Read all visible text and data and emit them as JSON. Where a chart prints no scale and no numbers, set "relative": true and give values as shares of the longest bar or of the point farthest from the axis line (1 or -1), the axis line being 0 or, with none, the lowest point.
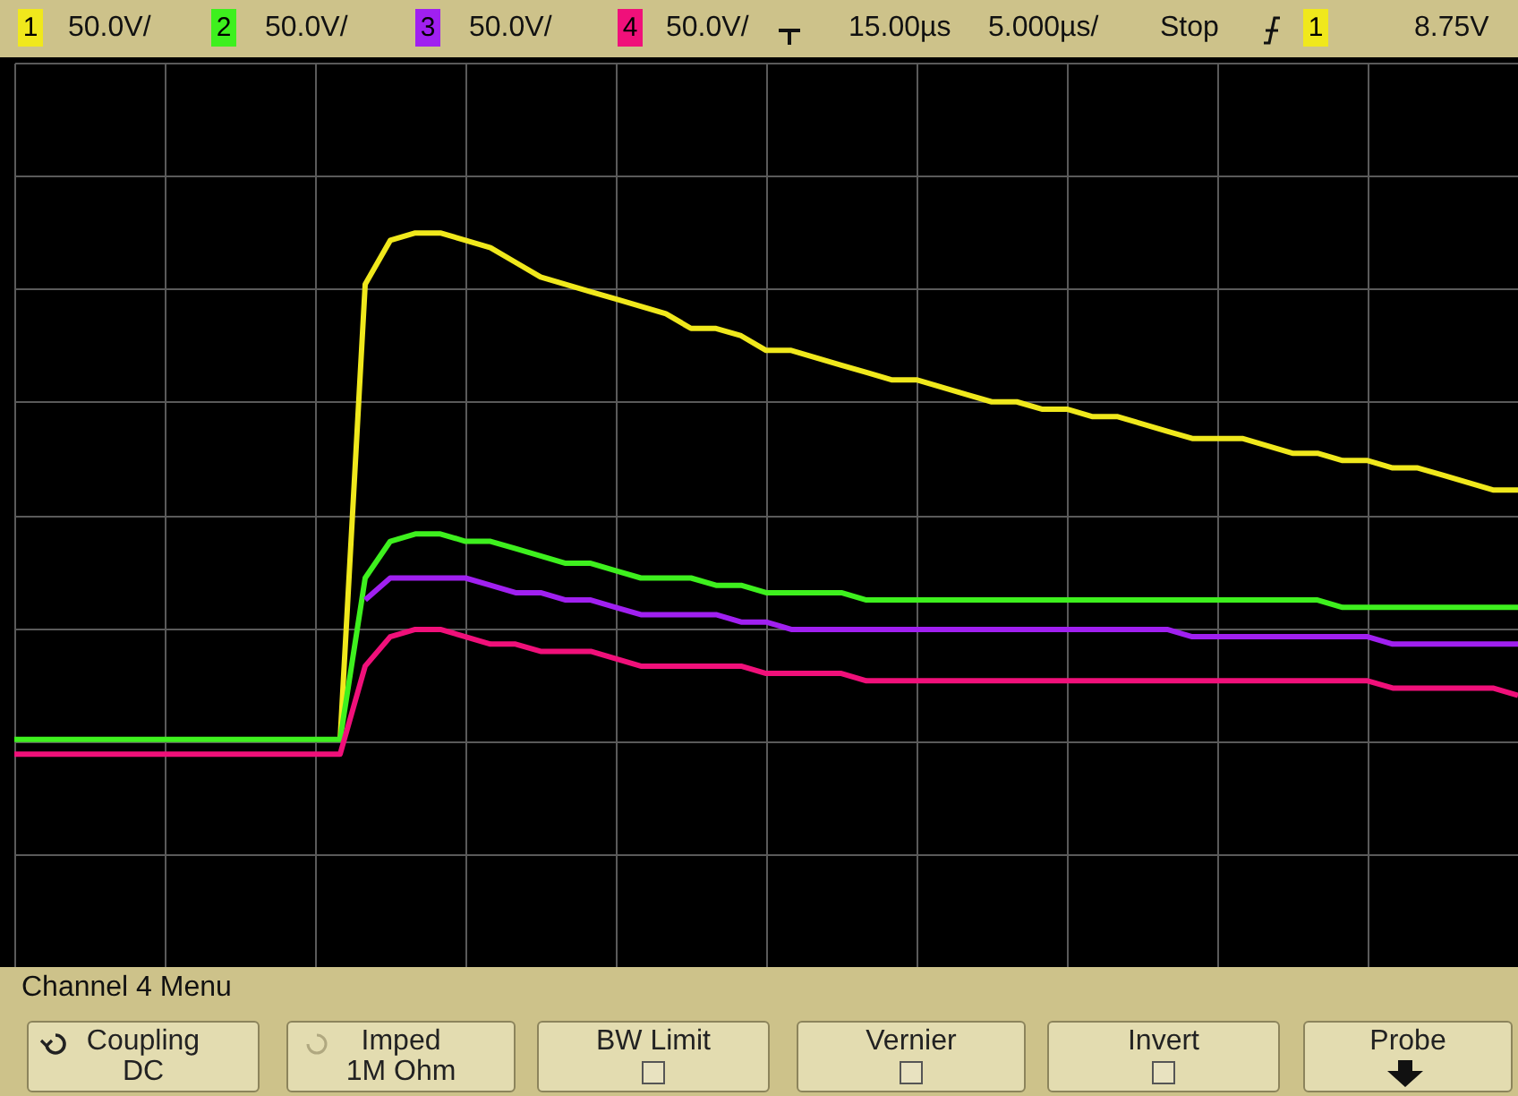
{
  "chart_data": {
    "type": "line",
    "relative": true,
    "legend": "top",
    "grid": true,
    "line_style": "solid",
    "categories": [
      null,
      null,
      null,
      null,
      null,
      null,
      null,
      null,
      null,
      null,
      null,
      null,
      null,
      null,
      null,
      null,
      null,
      null,
      null,
      null,
      null,
      null,
      null,
      null,
      null,
      null,
      null,
      null,
      null,
      null,
      null,
      null,
      null,
      null,
      null,
      null,
      null,
      null,
      null,
      null,
      null,
      null,
      null,
      null,
      null,
      null,
      null,
      null,
      null,
      null,
      null,
      null,
      null,
      null,
      null,
      null,
      null,
      null,
      null,
      null,
      null
    ],
    "series": [
      {
        "name": "1",
        "color": "#f0e81c",
        "values": [
          null,
          null,
          null,
          null,
          null,
          null,
          null,
          null,
          null,
          null,
          null,
          null,
          null,
          0.31,
          0.93,
          0.99,
          1.0,
          1.0,
          0.99,
          0.98,
          0.96,
          0.94,
          0.93,
          0.92,
          0.91,
          0.9,
          0.89,
          0.87,
          0.87,
          0.86,
          0.84,
          0.84,
          0.83,
          0.82,
          0.81,
          0.8,
          0.8,
          0.79,
          0.78,
          0.77,
          0.77,
          0.76,
          0.76,
          0.75,
          0.75,
          0.74,
          0.73,
          0.72,
          0.72,
          0.72,
          0.71,
          0.7,
          0.7,
          0.69,
          0.69,
          0.68,
          0.68,
          0.67,
          0.66,
          0.65,
          0.65
        ]
      },
      {
        "name": "2",
        "color": "#3ef01e",
        "values": [
          0.31,
          0.31,
          0.31,
          0.31,
          0.31,
          0.31,
          0.31,
          0.31,
          0.31,
          0.31,
          0.31,
          0.31,
          0.31,
          0.31,
          0.53,
          0.58,
          0.59,
          0.59,
          0.58,
          0.58,
          0.57,
          0.56,
          0.55,
          0.55,
          0.54,
          0.53,
          0.53,
          0.53,
          0.52,
          0.52,
          0.51,
          0.51,
          0.51,
          0.51,
          0.5,
          0.5,
          0.5,
          0.5,
          0.5,
          0.5,
          0.5,
          0.5,
          0.5,
          0.5,
          0.5,
          0.5,
          0.5,
          0.5,
          0.5,
          0.5,
          0.5,
          0.5,
          0.5,
          0.49,
          0.49,
          0.49,
          0.49,
          0.49,
          0.49,
          0.49,
          0.49
        ]
      },
      {
        "name": "3",
        "color": "#a020f0",
        "values": [
          null,
          null,
          null,
          null,
          null,
          null,
          null,
          null,
          null,
          null,
          null,
          null,
          null,
          null,
          0.5,
          0.53,
          0.53,
          0.53,
          0.53,
          0.52,
          0.51,
          0.51,
          0.5,
          0.5,
          0.49,
          0.48,
          0.48,
          0.48,
          0.48,
          0.47,
          0.47,
          0.46,
          0.46,
          0.46,
          0.46,
          0.46,
          0.46,
          0.46,
          0.46,
          0.46,
          0.46,
          0.46,
          0.46,
          0.46,
          0.46,
          0.46,
          0.46,
          0.45,
          0.45,
          0.45,
          0.45,
          0.45,
          0.45,
          0.45,
          0.45,
          0.44,
          0.44,
          0.44,
          0.44,
          0.44,
          0.44
        ]
      },
      {
        "name": "4",
        "color": "#f0107a",
        "values": [
          0.29,
          0.29,
          0.29,
          0.29,
          0.29,
          0.29,
          0.29,
          0.29,
          0.29,
          0.29,
          0.29,
          0.29,
          0.29,
          0.29,
          0.41,
          0.45,
          0.46,
          0.46,
          0.45,
          0.44,
          0.44,
          0.43,
          0.43,
          0.43,
          0.42,
          0.41,
          0.41,
          0.41,
          0.41,
          0.41,
          0.4,
          0.4,
          0.4,
          0.4,
          0.39,
          0.39,
          0.39,
          0.39,
          0.39,
          0.39,
          0.39,
          0.39,
          0.39,
          0.39,
          0.39,
          0.39,
          0.39,
          0.39,
          0.39,
          0.39,
          0.39,
          0.39,
          0.39,
          0.39,
          0.39,
          0.38,
          0.38,
          0.38,
          0.38,
          0.38,
          0.37
        ]
      }
    ],
    "annotations": [
      "50.0V/",
      "50.0V/",
      "50.0V/",
      "50.0V/",
      "15.00µs",
      "5.000µs/",
      "Stop",
      "1",
      "8.75V",
      "Channel 4 Menu",
      "Coupling",
      "DC",
      "Imped",
      "1M Ohm",
      "BW Limit",
      "Vernier",
      "Invert",
      "Probe"
    ]
  }
}
